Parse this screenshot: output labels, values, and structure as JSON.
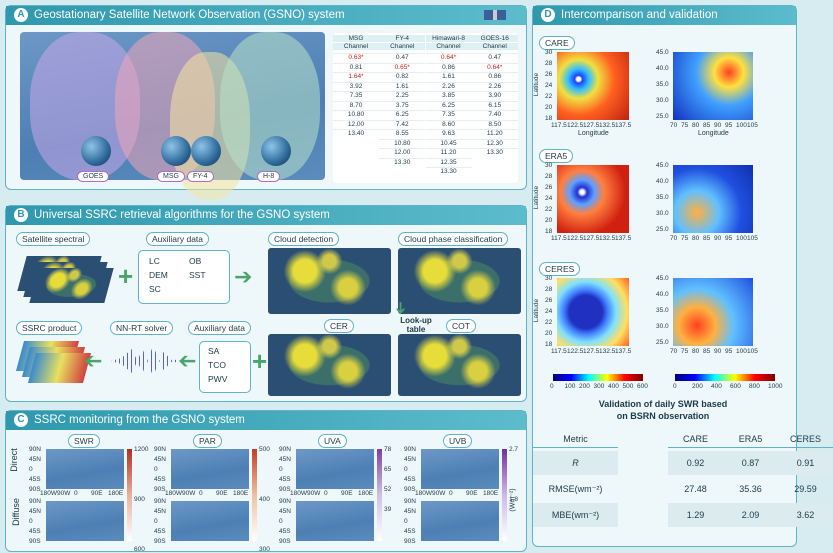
{
  "panel_a": {
    "letter": "A",
    "title": "Geostationary Satellite Network Observation (GSNO) system",
    "satellites": [
      "GOES",
      "MSG",
      "FY-4",
      "H-8"
    ],
    "channel_table": [
      {
        "name": "MSG",
        "header": "Channel",
        "values": [
          "0.63*",
          "0.81",
          "1.64*",
          "3.92",
          "7.35",
          "8.70",
          "10.80",
          "12.00",
          "13.40"
        ]
      },
      {
        "name": "FY-4",
        "header": "Channel",
        "values": [
          "0.47",
          "0.65*",
          "0.82",
          "1.61",
          "2.25",
          "3.75",
          "6.25",
          "7.42",
          "8.55",
          "10.80",
          "12.00",
          "13.30"
        ]
      },
      {
        "name": "Himawari-8",
        "header": "Channel",
        "values": [
          "0.64*",
          "0.86",
          "1.61",
          "2.26",
          "3.85",
          "6.25",
          "7.35",
          "8.60",
          "9.63",
          "10.45",
          "11.20",
          "12.35",
          "13.30"
        ]
      },
      {
        "name": "GOES-16",
        "header": "Channel",
        "values": [
          "0.47",
          "0.64*",
          "0.86",
          "2.26",
          "3.90",
          "6.15",
          "7.40",
          "8.50",
          "11.20",
          "12.30",
          "13.30"
        ]
      }
    ]
  },
  "panel_b": {
    "letter": "B",
    "title": "Universal SSRC retrieval algorithms for the GSNO system",
    "satellite_spectral": "Satellite spectral",
    "auxiliary_1": {
      "title": "Auxiliary data",
      "items": [
        "LC",
        "OB",
        "DEM",
        "SST",
        "SC"
      ]
    },
    "cloud_detection": "Cloud detection",
    "cloud_phase": "Cloud phase classification",
    "lookup": "Look-up table",
    "cer": "CER",
    "cot": "COT",
    "product": "SSRC product",
    "solver": "NN-RT solver",
    "auxiliary_2": {
      "title": "Auxiliary data",
      "items": [
        "SA",
        "TCO",
        "PWV"
      ]
    }
  },
  "panel_c": {
    "letter": "C",
    "title": "SSRC monitoring from the GSNO system",
    "variables": [
      {
        "name": "SWR",
        "colorbar": [
          1200,
          900,
          600
        ]
      },
      {
        "name": "PAR",
        "colorbar": [
          500,
          400,
          300
        ]
      },
      {
        "name": "UVA",
        "colorbar": [
          78,
          65,
          52,
          39
        ]
      },
      {
        "name": "UVB",
        "colorbar": [
          2.7,
          1.8
        ]
      }
    ],
    "rows": [
      "Direct",
      "Diffuse"
    ],
    "lat_ticks": [
      "90N",
      "45N",
      "0",
      "45S",
      "90S"
    ],
    "lon_ticks": [
      "180W",
      "90W",
      "0",
      "90E",
      "180E"
    ],
    "unit": "(Wm⁻²)"
  },
  "panel_d": {
    "letter": "D",
    "title": "Intercomparison and validation",
    "datasets": [
      "CARE",
      "ERA5",
      "CERES"
    ],
    "ylabel": "Latitude",
    "xlabel": "Longitude",
    "left_lat_ticks": [
      30,
      28,
      26,
      24,
      22,
      20,
      18
    ],
    "left_lon_ticks": [
      117.5,
      122.5,
      127.5,
      132.5,
      137.5
    ],
    "right_lat_ticks": [
      "45.0",
      "40.0",
      "35.0",
      "30.0",
      "25.0"
    ],
    "right_lon_ticks": [
      70,
      75,
      80,
      85,
      90,
      95,
      100,
      105
    ],
    "left_colorbar": [
      0,
      100,
      200,
      300,
      400,
      500,
      600
    ],
    "right_colorbar": [
      0,
      200,
      400,
      600,
      800,
      1000
    ],
    "validation": {
      "title": "Validation of daily SWR based on BSRN observation",
      "header": [
        "Metric",
        "CARE",
        "ERA5",
        "CERES"
      ],
      "rows": [
        [
          "R",
          "0.92",
          "0.87",
          "0.91"
        ],
        [
          "RMSE(wm⁻²)",
          "27.48",
          "35.36",
          "29.59"
        ],
        [
          "MBE(wm⁻²)",
          "1.29",
          "2.09",
          "3.62"
        ]
      ]
    }
  }
}
